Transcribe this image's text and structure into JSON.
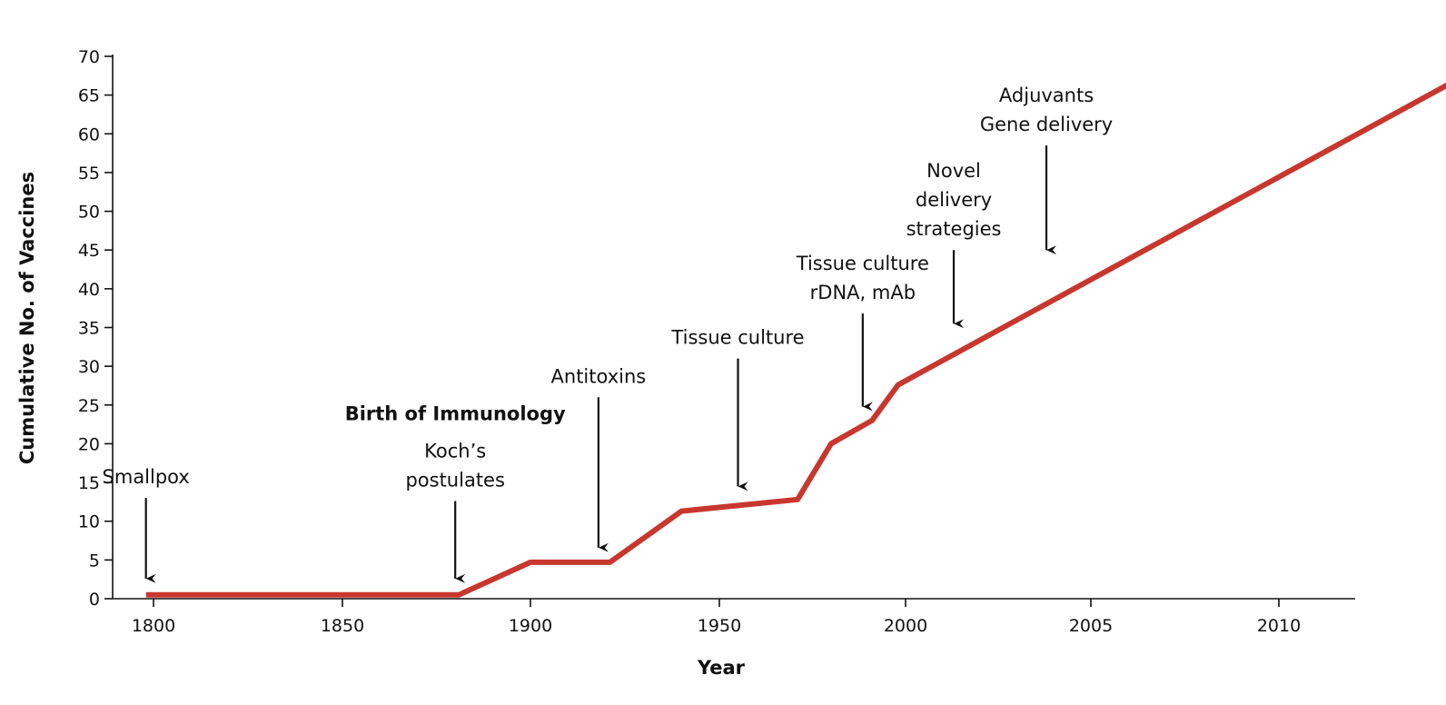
{
  "chart_data": {
    "type": "line",
    "xlabel": "Year",
    "ylabel": "Cumulative No. of Vaccines",
    "ylim": [
      0,
      70
    ],
    "y_ticks": [
      "0",
      "5",
      "10",
      "15",
      "20",
      "25",
      "30",
      "35",
      "40",
      "45",
      "50",
      "55",
      "60",
      "65",
      "70"
    ],
    "x_ticks": [
      "1800",
      "1850",
      "1900",
      "1950",
      "2000",
      "2005",
      "2010"
    ],
    "x_axis_note": "piecewise scale: 50-year steps to 2000, then 5-year steps",
    "series_color": "#c8372d",
    "series": [
      {
        "points": [
          {
            "x": 1798,
            "y": 0.5
          },
          {
            "x": 1881,
            "y": 0.5
          },
          {
            "x": 1900,
            "y": 4.7
          },
          {
            "x": 1921,
            "y": 4.7
          },
          {
            "x": 1940,
            "y": 11.3
          },
          {
            "x": 1971,
            "y": 12.8
          },
          {
            "x": 1980,
            "y": 20
          },
          {
            "x": 1991,
            "y": 23
          },
          {
            "x": 1998,
            "y": 27.6
          },
          {
            "x": 2015.5,
            "y": 69
          }
        ]
      }
    ],
    "annotations": [
      {
        "lines": [
          "Smallpox"
        ],
        "bold": false,
        "x": 1798,
        "arrow_from": 13,
        "arrow_to": 2.6
      },
      {
        "lines": [
          "Birth of Immunology"
        ],
        "bold": true,
        "x": 1880,
        "arrow_from": null,
        "arrow_to": null
      },
      {
        "lines": [
          "Koch’s",
          "postulates"
        ],
        "bold": false,
        "x": 1880,
        "arrow_from": 12.6,
        "arrow_to": 2.6
      },
      {
        "lines": [
          "Antitoxins"
        ],
        "bold": false,
        "x": 1918,
        "arrow_from": 26,
        "arrow_to": 6.6
      },
      {
        "lines": [
          "Tissue culture"
        ],
        "bold": false,
        "x": 1955,
        "arrow_from": 31,
        "arrow_to": 14.5
      },
      {
        "lines": [
          "Tissue culture",
          "rDNA, mAb"
        ],
        "bold": false,
        "x": 1988.5,
        "arrow_from": 36.8,
        "arrow_to": 24.8
      },
      {
        "lines": [
          "Novel",
          "delivery",
          "strategies"
        ],
        "bold": false,
        "x": 2001.3,
        "arrow_from": 45,
        "arrow_to": 35.5
      },
      {
        "lines": [
          "Adjuvants",
          "Gene delivery"
        ],
        "bold": false,
        "x": 2003.8,
        "arrow_from": 58.5,
        "arrow_to": 45
      }
    ]
  }
}
